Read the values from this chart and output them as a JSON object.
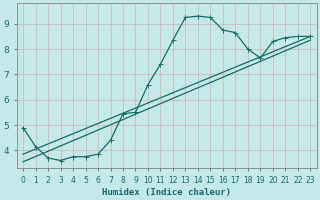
{
  "xlabel": "Humidex (Indice chaleur)",
  "bg_color": "#c5e8e8",
  "line_color": "#1a6b6b",
  "grid_color": "#b0d4d4",
  "xlim": [
    -0.5,
    23.5
  ],
  "ylim": [
    3.3,
    9.8
  ],
  "xticks": [
    0,
    1,
    2,
    3,
    4,
    5,
    6,
    7,
    8,
    9,
    10,
    11,
    12,
    13,
    14,
    15,
    16,
    17,
    18,
    19,
    20,
    21,
    22,
    23
  ],
  "yticks": [
    4,
    5,
    6,
    7,
    8,
    9
  ],
  "curve1_x": [
    0,
    1,
    2,
    3,
    4,
    5,
    6,
    7,
    8,
    9,
    10,
    11,
    12,
    13,
    14,
    15,
    16,
    17,
    18,
    19,
    20,
    21,
    22,
    23
  ],
  "curve1_y": [
    4.9,
    4.15,
    3.7,
    3.6,
    3.75,
    3.75,
    3.85,
    4.4,
    5.45,
    5.5,
    6.6,
    7.4,
    8.35,
    9.25,
    9.3,
    9.25,
    8.75,
    8.65,
    8.0,
    7.65,
    8.3,
    8.45,
    8.5,
    8.5
  ],
  "line2_x": [
    0,
    23
  ],
  "line2_y": [
    3.85,
    8.5
  ],
  "line3_x": [
    0,
    23
  ],
  "line3_y": [
    3.55,
    8.35
  ]
}
